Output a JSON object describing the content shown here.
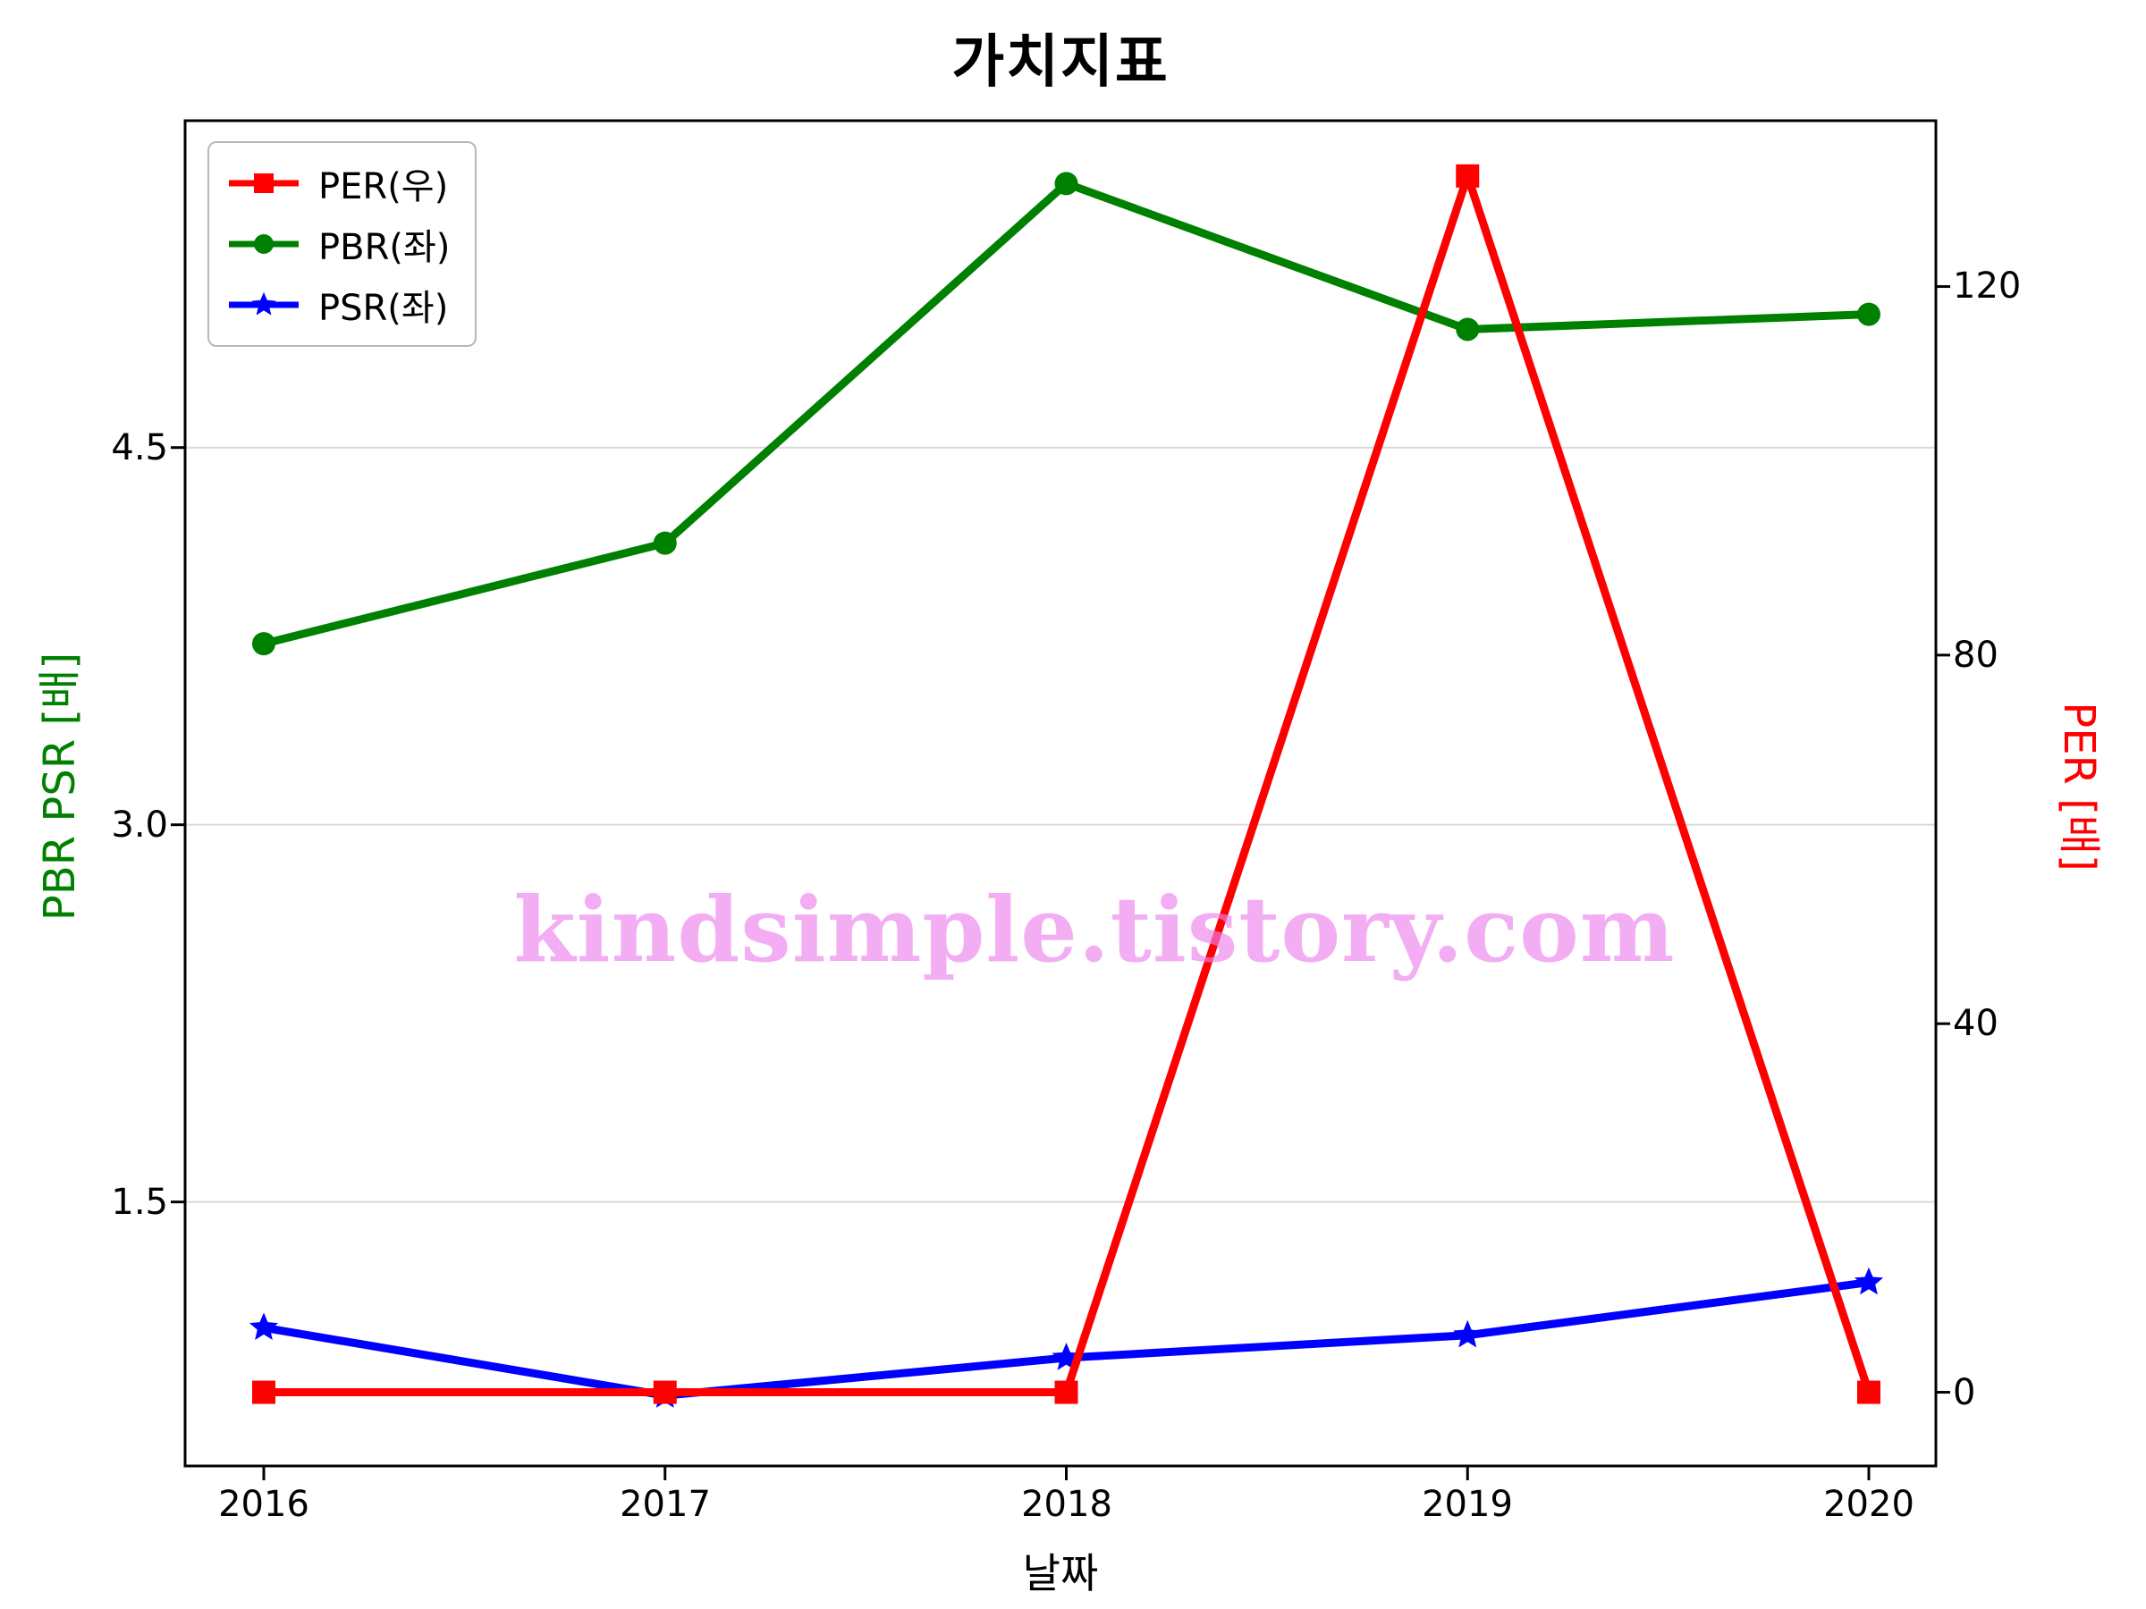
{
  "chart_data": {
    "type": "line",
    "title": "가치지표",
    "xlabel": "날짜",
    "ylabel_left": "PBR PSR [배]",
    "ylabel_right": "PER [배]",
    "x": [
      2016,
      2017,
      2018,
      2019,
      2020
    ],
    "x_tick_labels": [
      "2016",
      "2017",
      "2018",
      "2019",
      "2020"
    ],
    "left_ticks": [
      1.5,
      3.0,
      4.5
    ],
    "left_tick_labels": [
      "1.5",
      "3.0",
      "4.5"
    ],
    "right_ticks": [
      0,
      40,
      80,
      120
    ],
    "right_tick_labels": [
      "0",
      "40",
      "80",
      "120"
    ],
    "left_ylim": [
      0.45,
      5.8
    ],
    "right_ylim": [
      -8,
      138
    ],
    "grid": "horizontal",
    "legend_position": "upper-left",
    "series": [
      {
        "name": "PER(우)",
        "axis": "right",
        "color": "#ff0000",
        "marker": "square",
        "values": [
          0,
          0,
          0,
          132,
          0
        ]
      },
      {
        "name": "PBR(좌)",
        "axis": "left",
        "color": "#008000",
        "marker": "circle",
        "values": [
          3.72,
          4.12,
          5.55,
          4.97,
          5.03
        ]
      },
      {
        "name": "PSR(좌)",
        "axis": "left",
        "color": "#0000ff",
        "marker": "star",
        "values": [
          1.0,
          0.73,
          0.88,
          0.97,
          1.18
        ]
      }
    ],
    "watermark": "kindsimple.tistory.com",
    "watermark_color": "#ee82ee"
  }
}
